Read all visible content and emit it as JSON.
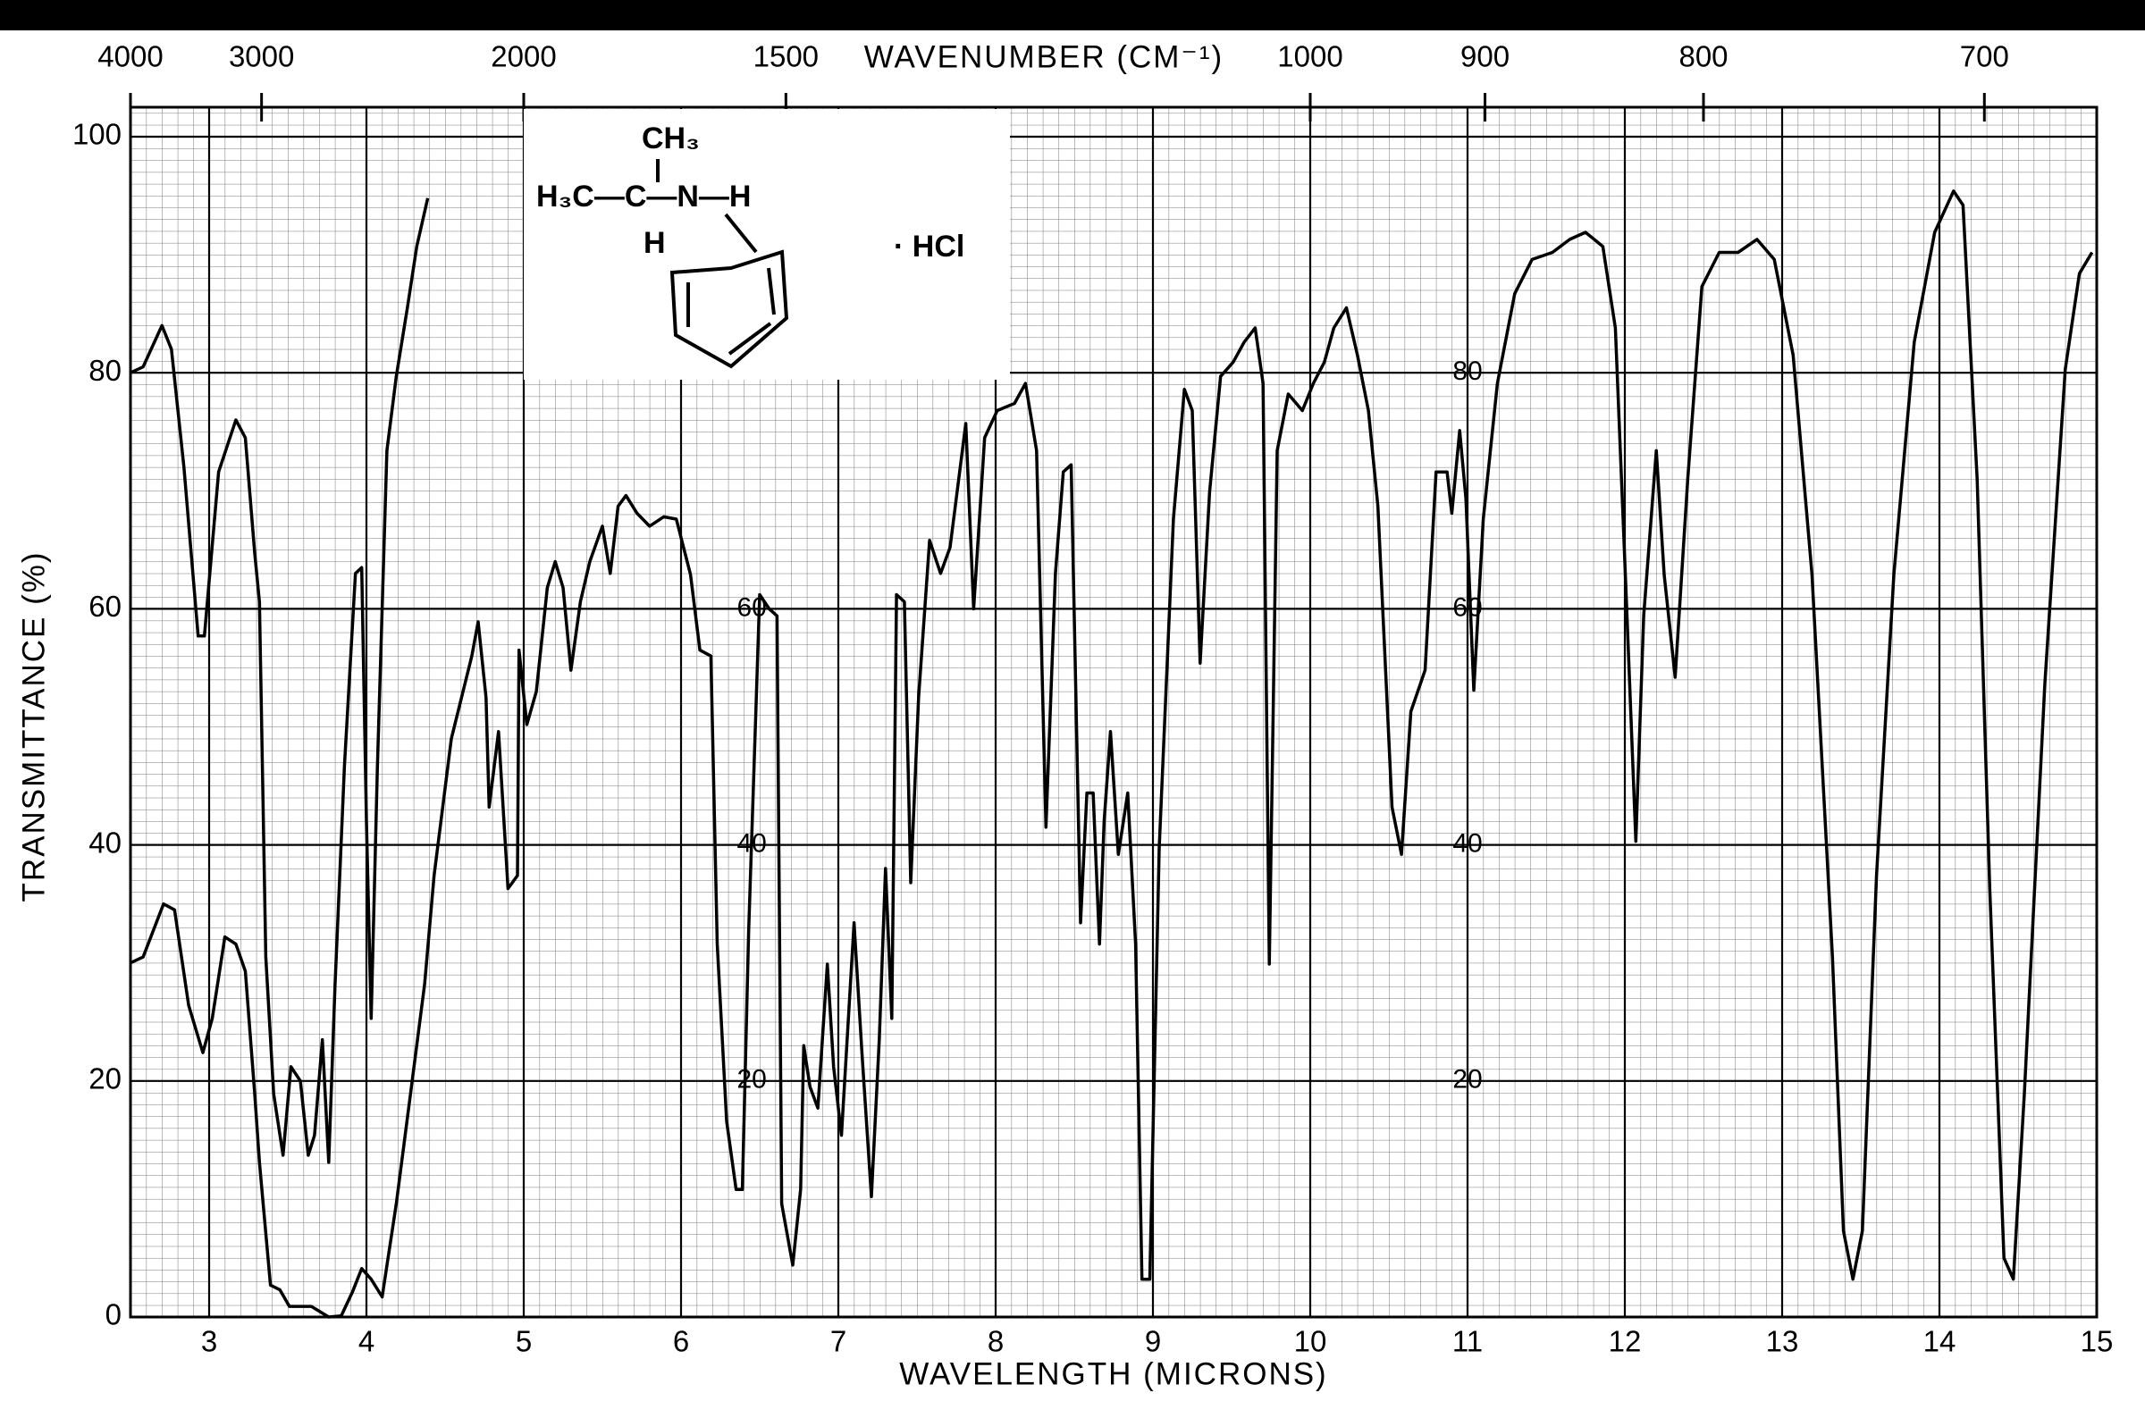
{
  "chart_data": {
    "type": "line",
    "xlabel": "WAVELENGTH (MICRONS)",
    "ylabel": "TRANSMITTANCE (%)",
    "x2label": "WAVENUMBER (CM⁻¹)",
    "xlim": [
      2.5,
      15
    ],
    "xticks": [
      3,
      4,
      5,
      6,
      7,
      8,
      9,
      10,
      11,
      12,
      13,
      14,
      15
    ],
    "ylim": [
      0,
      100
    ],
    "yticks": [
      0,
      20,
      40,
      60,
      80,
      100
    ],
    "x2ticks": [
      4000,
      3000,
      2000,
      1500,
      1000,
      900,
      800,
      700
    ],
    "grid": true,
    "structure": {
      "top": "CH₃",
      "main": "H₃C—C—N—H",
      "bottom": "H",
      "salt": "· HCl"
    },
    "annotations": [
      {
        "text": "60",
        "x": 6.45,
        "y": 60
      },
      {
        "text": "40",
        "x": 6.45,
        "y": 40
      },
      {
        "text": "20",
        "x": 6.45,
        "y": 20
      },
      {
        "text": "80",
        "x": 11.0,
        "y": 80
      },
      {
        "text": "60",
        "x": 11.0,
        "y": 60
      },
      {
        "text": "40",
        "x": 11.0,
        "y": 40
      },
      {
        "text": "20",
        "x": 11.0,
        "y": 20
      }
    ],
    "series": [
      {
        "color": "#000000",
        "x": [
          2.5,
          2.58,
          2.7,
          2.76,
          2.84,
          2.93,
          2.97,
          3.06,
          3.17,
          3.23,
          3.29,
          3.32,
          3.36,
          3.41,
          3.47,
          3.52,
          3.58,
          3.63,
          3.67,
          3.72,
          3.76,
          3.8,
          3.86,
          3.93,
          3.97,
          4.0,
          4.03,
          4.07,
          4.13,
          4.19,
          4.26,
          4.32,
          4.39
        ],
        "values": [
          80,
          80.5,
          84,
          82,
          72,
          57.7,
          57.7,
          71.6,
          76,
          74.5,
          64.7,
          60.6,
          30.5,
          18.9,
          13.7,
          21.2,
          20,
          13.7,
          15.4,
          23.5,
          13.1,
          28,
          46.7,
          63,
          63.5,
          42,
          25.3,
          46.7,
          73.4,
          79.7,
          85.5,
          90.7,
          94.8
        ]
      },
      {
        "color": "#000000",
        "x": [
          2.5,
          2.58,
          2.71,
          2.78,
          2.87,
          2.96,
          3.02,
          3.1,
          3.17,
          3.23,
          3.29,
          3.32,
          3.39,
          3.45,
          3.51,
          3.65,
          3.76,
          3.84,
          3.91,
          3.97,
          4.03,
          4.1,
          4.19,
          4.28,
          4.37,
          4.43,
          4.54,
          4.67,
          4.71,
          4.76,
          4.78,
          4.84,
          4.9,
          4.96,
          4.97,
          5.02,
          5.08,
          5.15,
          5.2,
          5.25,
          5.3,
          5.36,
          5.42,
          5.5,
          5.55,
          5.6,
          5.65,
          5.72,
          5.8,
          5.89,
          5.97,
          6.06,
          6.12,
          6.19,
          6.23,
          6.29,
          6.35,
          6.39,
          6.43,
          6.5,
          6.56,
          6.61,
          6.64,
          6.71,
          6.76,
          6.78,
          6.82,
          6.87,
          6.93,
          6.97,
          7.02,
          7.1,
          7.15,
          7.21,
          7.26,
          7.3,
          7.34,
          7.37,
          7.42,
          7.46,
          7.51,
          7.58,
          7.65,
          7.71,
          7.81,
          7.86,
          7.93,
          8.01,
          8.12,
          8.19,
          8.26,
          8.32,
          8.38,
          8.43,
          8.48,
          8.54,
          8.58,
          8.62,
          8.66,
          8.69,
          8.73,
          8.78,
          8.84,
          8.89,
          8.93,
          8.98,
          9.04,
          9.13,
          9.2,
          9.25,
          9.3,
          9.36,
          9.43,
          9.51,
          9.58,
          9.65,
          9.7,
          9.74,
          9.79,
          9.86,
          9.95,
          10.02,
          10.09,
          10.15,
          10.23,
          10.3,
          10.37,
          10.43,
          10.52,
          10.58,
          10.64,
          10.73,
          10.8,
          10.87,
          10.9,
          10.95,
          10.99,
          11.04,
          11.1,
          11.19,
          11.3,
          11.41,
          11.54,
          11.65,
          11.75,
          11.86,
          11.94,
          12.01,
          12.07,
          12.12,
          12.2,
          12.25,
          12.32,
          12.4,
          12.49,
          12.6,
          12.72,
          12.84,
          12.95,
          13.07,
          13.19,
          13.32,
          13.39,
          13.45,
          13.51,
          13.6,
          13.71,
          13.84,
          13.97,
          14.09,
          14.15,
          14.24,
          14.32,
          14.41,
          14.47,
          14.54,
          14.67,
          14.8,
          14.89,
          14.97
        ],
        "values": [
          30,
          30.5,
          35,
          34.5,
          26.4,
          22.4,
          25.3,
          32.2,
          31.6,
          29.3,
          18.9,
          13.1,
          2.7,
          2.3,
          0.9,
          0.9,
          0,
          0.1,
          2.1,
          4.1,
          3.2,
          1.7,
          9.6,
          18.9,
          28.2,
          37.4,
          49,
          56,
          58.9,
          52.5,
          43.2,
          49.6,
          36.3,
          37.4,
          56.5,
          50.2,
          53,
          61.8,
          64,
          61.8,
          54.8,
          60.6,
          64,
          67,
          63,
          68.7,
          69.6,
          68.1,
          67,
          67.8,
          67.6,
          62.9,
          56.5,
          56,
          31.6,
          16.6,
          10.8,
          10.8,
          32.8,
          61.2,
          60,
          59.4,
          9.6,
          4.4,
          10.8,
          23,
          19.5,
          17.7,
          29.9,
          21.2,
          15.4,
          33.4,
          22.4,
          10.2,
          23.5,
          38,
          25.3,
          61.2,
          60.6,
          36.8,
          52.5,
          65.8,
          63,
          65.2,
          75.7,
          60,
          74.5,
          76.8,
          77.4,
          79.1,
          73.4,
          41.5,
          63,
          71.6,
          72.2,
          33.4,
          44.4,
          44.4,
          31.6,
          42,
          49.6,
          39.2,
          44.4,
          31.6,
          3.2,
          3.2,
          39.7,
          67.6,
          78.6,
          76.8,
          55.4,
          69.9,
          79.7,
          80.9,
          82.6,
          83.8,
          79.1,
          29.9,
          73.4,
          78.2,
          76.8,
          79.1,
          80.9,
          83.8,
          85.5,
          81.5,
          76.8,
          68.7,
          43.2,
          39.2,
          51.3,
          54.8,
          71.6,
          71.6,
          68.1,
          75.1,
          69.3,
          53.1,
          67.6,
          79.1,
          86.7,
          89.6,
          90.2,
          91.3,
          91.9,
          90.7,
          83.8,
          60.6,
          40.3,
          59.4,
          73.4,
          62.9,
          54.2,
          71,
          87.3,
          90.2,
          90.2,
          91.3,
          89.6,
          81.5,
          62.9,
          30.5,
          7.3,
          3.2,
          7.3,
          37.4,
          62.9,
          82.6,
          91.9,
          95.4,
          94.2,
          71,
          36.3,
          5,
          3.2,
          18.9,
          53.6,
          80.3,
          88.4,
          90.2
        ]
      }
    ]
  }
}
